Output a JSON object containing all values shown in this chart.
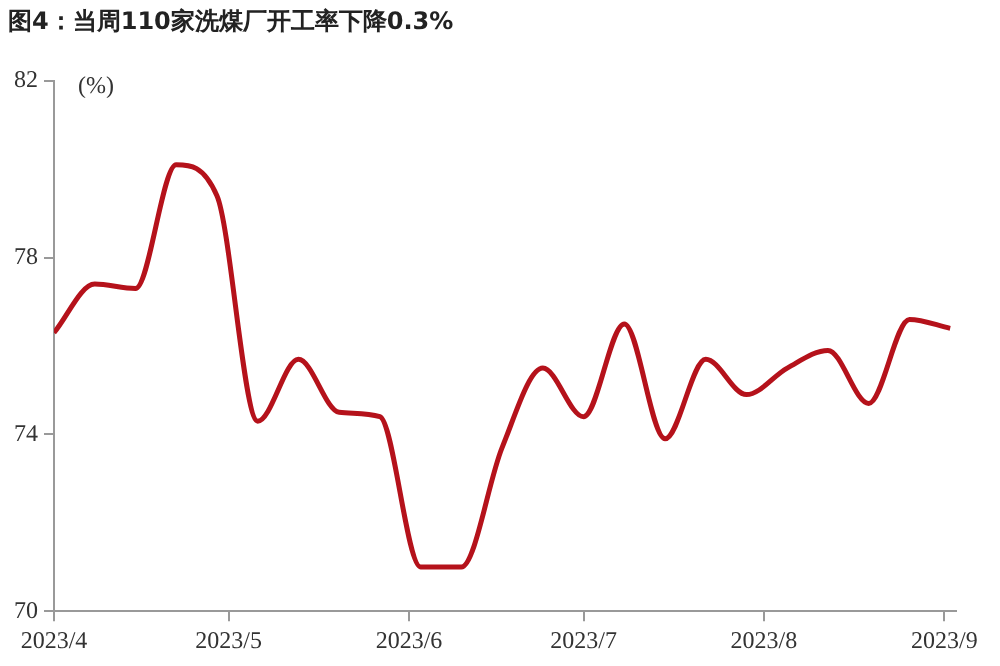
{
  "chart_data": {
    "type": "line",
    "title": "图4：当周110家洗煤厂开工率下降0.3%",
    "ylabel": "(%)",
    "x": [
      "2023-04-01",
      "2023-04-08",
      "2023-04-15",
      "2023-04-22",
      "2023-04-29",
      "2023-05-06",
      "2023-05-13",
      "2023-05-20",
      "2023-05-27",
      "2023-06-03",
      "2023-06-10",
      "2023-06-17",
      "2023-06-24",
      "2023-07-01",
      "2023-07-08",
      "2023-07-15",
      "2023-07-22",
      "2023-07-29",
      "2023-08-05",
      "2023-08-12",
      "2023-08-19",
      "2023-08-26",
      "2023-09-02"
    ],
    "series": [
      {
        "color": "#b5121b",
        "values": [
          76.3,
          77.4,
          77.3,
          80.1,
          79.4,
          74.3,
          75.7,
          74.5,
          74.4,
          71.0,
          71.0,
          73.7,
          75.5,
          74.4,
          76.5,
          73.9,
          75.7,
          74.9,
          75.5,
          75.9,
          74.7,
          76.6,
          76.4
        ]
      }
    ],
    "xlim": [
      "2023-04-01",
      "2023-09-03"
    ],
    "xticks": [
      {
        "value": "2023-04-01",
        "label": "2023/4"
      },
      {
        "value": "2023-05-01",
        "label": "2023/5"
      },
      {
        "value": "2023-06-01",
        "label": "2023/6"
      },
      {
        "value": "2023-07-01",
        "label": "2023/7"
      },
      {
        "value": "2023-08-01",
        "label": "2023/8"
      },
      {
        "value": "2023-09-01",
        "label": "2023/9"
      }
    ],
    "ylim": [
      70,
      82
    ],
    "yticks": [
      70,
      74,
      78,
      82
    ],
    "grid": false,
    "legend": false,
    "marker": "none",
    "line_style": "solid"
  }
}
